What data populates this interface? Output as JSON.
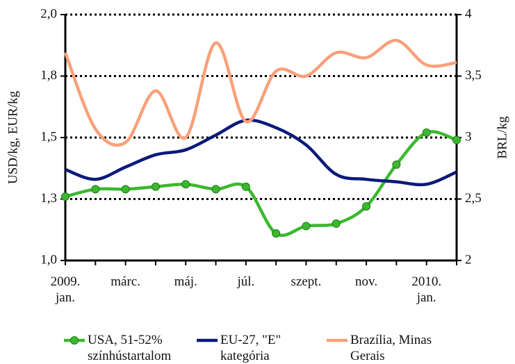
{
  "chart_data": {
    "type": "line",
    "ylabel": "USD/kg, EUR/kg",
    "y2label": "BRL/kg",
    "categories": [
      "2009. jan.",
      null,
      "márc.",
      null,
      "máj.",
      null,
      "júl.",
      null,
      "szept.",
      null,
      "nov.",
      null,
      "2010. jan.",
      null
    ],
    "series": [
      {
        "name": "USA, 51-52% színhústartalom",
        "color": "#3cb82e",
        "marker": true,
        "values": [
          1.26,
          1.29,
          1.29,
          1.3,
          1.31,
          1.29,
          1.3,
          1.11,
          1.14,
          1.15,
          1.22,
          1.39,
          1.52,
          1.49
        ]
      },
      {
        "name": "EU-27, \"E\" kategória",
        "color": "#0b1a7a",
        "marker": false,
        "values": [
          1.37,
          1.33,
          1.38,
          1.43,
          1.45,
          1.51,
          1.57,
          1.54,
          1.47,
          1.35,
          1.33,
          1.32,
          1.31,
          1.36
        ]
      },
      {
        "name": "Brazília, Minas Gerais",
        "color": "#f9a07a",
        "marker": false,
        "axis": "y2",
        "values": [
          3.69,
          3.07,
          2.96,
          3.38,
          3.0,
          3.77,
          3.13,
          3.54,
          3.5,
          3.69,
          3.65,
          3.79,
          3.59,
          3.61
        ]
      }
    ],
    "ylim": [
      1.0,
      2.0
    ],
    "yticks": [
      {
        "value": 1.0,
        "label": "1,0"
      },
      {
        "value": 1.25,
        "label": "1,3"
      },
      {
        "value": 1.5,
        "label": "1,5"
      },
      {
        "value": 1.75,
        "label": "1,8"
      },
      {
        "value": 2.0,
        "label": "2,0"
      }
    ],
    "y2lim": [
      2,
      4
    ],
    "y2ticks": [
      2,
      {
        "value": 2.5,
        "label": "2,5"
      },
      3,
      {
        "value": 3.5,
        "label": "3,5"
      },
      4
    ],
    "grid": true,
    "legend": "bottom"
  }
}
